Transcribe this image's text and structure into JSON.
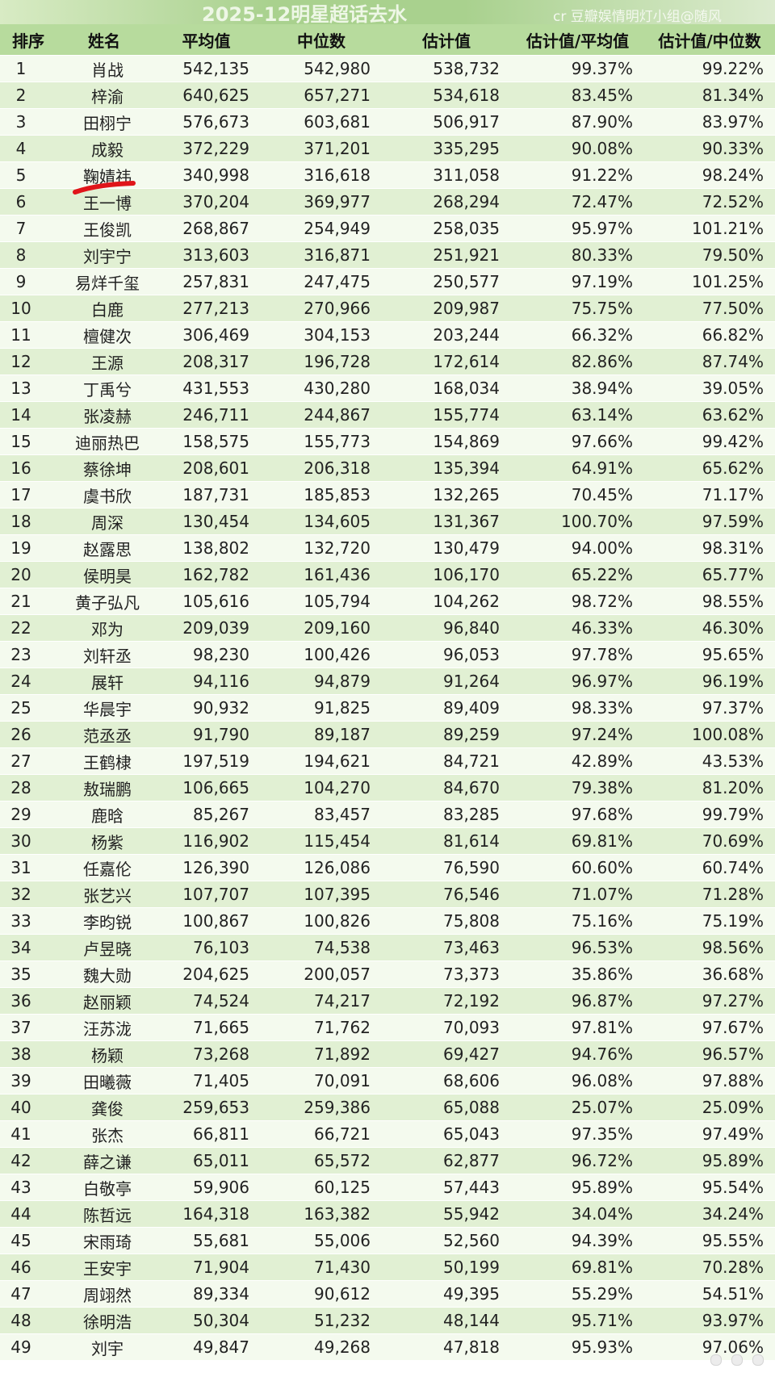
{
  "header": {
    "title": "2025-12明星超话去水",
    "credit": "cr 豆瓣娱情明灯小组@随风"
  },
  "table": {
    "columns": [
      "排序",
      "姓名",
      "平均值",
      "中位数",
      "估计值",
      "估计值/平均值",
      "估计值/中位数"
    ],
    "rows": [
      [
        "1",
        "肖战",
        "542,135",
        "542,980",
        "538,732",
        "99.37%",
        "99.22%"
      ],
      [
        "2",
        "梓渝",
        "640,625",
        "657,271",
        "534,618",
        "83.45%",
        "81.34%"
      ],
      [
        "3",
        "田栩宁",
        "576,673",
        "603,681",
        "506,917",
        "87.90%",
        "83.97%"
      ],
      [
        "4",
        "成毅",
        "372,229",
        "371,201",
        "335,295",
        "90.08%",
        "90.33%"
      ],
      [
        "5",
        "鞠婧祎",
        "340,998",
        "316,618",
        "311,058",
        "91.22%",
        "98.24%"
      ],
      [
        "6",
        "王一博",
        "370,204",
        "369,977",
        "268,294",
        "72.47%",
        "72.52%"
      ],
      [
        "7",
        "王俊凯",
        "268,867",
        "254,949",
        "258,035",
        "95.97%",
        "101.21%"
      ],
      [
        "8",
        "刘宇宁",
        "313,603",
        "316,871",
        "251,921",
        "80.33%",
        "79.50%"
      ],
      [
        "9",
        "易烊千玺",
        "257,831",
        "247,475",
        "250,577",
        "97.19%",
        "101.25%"
      ],
      [
        "10",
        "白鹿",
        "277,213",
        "270,966",
        "209,987",
        "75.75%",
        "77.50%"
      ],
      [
        "11",
        "檀健次",
        "306,469",
        "304,153",
        "203,244",
        "66.32%",
        "66.82%"
      ],
      [
        "12",
        "王源",
        "208,317",
        "196,728",
        "172,614",
        "82.86%",
        "87.74%"
      ],
      [
        "13",
        "丁禹兮",
        "431,553",
        "430,280",
        "168,034",
        "38.94%",
        "39.05%"
      ],
      [
        "14",
        "张凌赫",
        "246,711",
        "244,867",
        "155,774",
        "63.14%",
        "63.62%"
      ],
      [
        "15",
        "迪丽热巴",
        "158,575",
        "155,773",
        "154,869",
        "97.66%",
        "99.42%"
      ],
      [
        "16",
        "蔡徐坤",
        "208,601",
        "206,318",
        "135,394",
        "64.91%",
        "65.62%"
      ],
      [
        "17",
        "虞书欣",
        "187,731",
        "185,853",
        "132,265",
        "70.45%",
        "71.17%"
      ],
      [
        "18",
        "周深",
        "130,454",
        "134,605",
        "131,367",
        "100.70%",
        "97.59%"
      ],
      [
        "19",
        "赵露思",
        "138,802",
        "132,720",
        "130,479",
        "94.00%",
        "98.31%"
      ],
      [
        "20",
        "侯明昊",
        "162,782",
        "161,436",
        "106,170",
        "65.22%",
        "65.77%"
      ],
      [
        "21",
        "黄子弘凡",
        "105,616",
        "105,794",
        "104,262",
        "98.72%",
        "98.55%"
      ],
      [
        "22",
        "邓为",
        "209,039",
        "209,160",
        "96,840",
        "46.33%",
        "46.30%"
      ],
      [
        "23",
        "刘轩丞",
        "98,230",
        "100,426",
        "96,053",
        "97.78%",
        "95.65%"
      ],
      [
        "24",
        "展轩",
        "94,116",
        "94,879",
        "91,264",
        "96.97%",
        "96.19%"
      ],
      [
        "25",
        "华晨宇",
        "90,932",
        "91,825",
        "89,409",
        "98.33%",
        "97.37%"
      ],
      [
        "26",
        "范丞丞",
        "91,790",
        "89,187",
        "89,259",
        "97.24%",
        "100.08%"
      ],
      [
        "27",
        "王鹤棣",
        "197,519",
        "194,621",
        "84,721",
        "42.89%",
        "43.53%"
      ],
      [
        "28",
        "敖瑞鹏",
        "106,665",
        "104,270",
        "84,670",
        "79.38%",
        "81.20%"
      ],
      [
        "29",
        "鹿晗",
        "85,267",
        "83,457",
        "83,285",
        "97.68%",
        "99.79%"
      ],
      [
        "30",
        "杨紫",
        "116,902",
        "115,454",
        "81,614",
        "69.81%",
        "70.69%"
      ],
      [
        "31",
        "任嘉伦",
        "126,390",
        "126,086",
        "76,590",
        "60.60%",
        "60.74%"
      ],
      [
        "32",
        "张艺兴",
        "107,707",
        "107,395",
        "76,546",
        "71.07%",
        "71.28%"
      ],
      [
        "33",
        "李昀锐",
        "100,867",
        "100,826",
        "75,808",
        "75.16%",
        "75.19%"
      ],
      [
        "34",
        "卢昱晓",
        "76,103",
        "74,538",
        "73,463",
        "96.53%",
        "98.56%"
      ],
      [
        "35",
        "魏大勋",
        "204,625",
        "200,057",
        "73,373",
        "35.86%",
        "36.68%"
      ],
      [
        "36",
        "赵丽颖",
        "74,524",
        "74,217",
        "72,192",
        "96.87%",
        "97.27%"
      ],
      [
        "37",
        "汪苏泷",
        "71,665",
        "71,762",
        "70,093",
        "97.81%",
        "97.67%"
      ],
      [
        "38",
        "杨颖",
        "73,268",
        "71,892",
        "69,427",
        "94.76%",
        "96.57%"
      ],
      [
        "39",
        "田曦薇",
        "71,405",
        "70,091",
        "68,606",
        "96.08%",
        "97.88%"
      ],
      [
        "40",
        "龚俊",
        "259,653",
        "259,386",
        "65,088",
        "25.07%",
        "25.09%"
      ],
      [
        "41",
        "张杰",
        "66,811",
        "66,721",
        "65,043",
        "97.35%",
        "97.49%"
      ],
      [
        "42",
        "薛之谦",
        "65,011",
        "65,572",
        "62,877",
        "96.72%",
        "95.89%"
      ],
      [
        "43",
        "白敬亭",
        "59,906",
        "60,125",
        "57,443",
        "95.89%",
        "95.54%"
      ],
      [
        "44",
        "陈哲远",
        "164,318",
        "163,382",
        "55,942",
        "34.04%",
        "34.24%"
      ],
      [
        "45",
        "宋雨琦",
        "55,681",
        "55,006",
        "52,560",
        "94.39%",
        "95.55%"
      ],
      [
        "46",
        "王安宇",
        "71,904",
        "71,430",
        "50,199",
        "69.81%",
        "70.28%"
      ],
      [
        "47",
        "周翊然",
        "89,334",
        "90,612",
        "49,395",
        "55.29%",
        "54.51%"
      ],
      [
        "48",
        "徐明浩",
        "50,304",
        "51,232",
        "48,144",
        "95.71%",
        "93.97%"
      ],
      [
        "49",
        "刘宇",
        "49,847",
        "49,268",
        "47,818",
        "95.93%",
        "97.06%"
      ]
    ]
  },
  "annotation": {
    "underline_color": "#e0151a",
    "marked_row": "5"
  },
  "colors": {
    "header_bg": "#b7db9d",
    "row_light": "#f4faee",
    "row_dark": "#e1f0d3",
    "title_bar": "#a9d18e"
  }
}
